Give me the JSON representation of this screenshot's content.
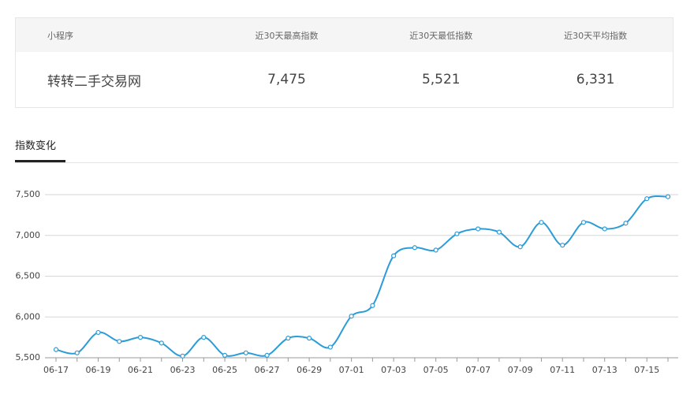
{
  "table": {
    "header": [
      "小程序",
      "近30天最高指数",
      "近30天最低指数",
      "近30天平均指数"
    ],
    "rows": [
      [
        "转转二手交易网",
        "7,475",
        "5,521",
        "6,331"
      ]
    ]
  },
  "tab": "指数变化",
  "chart_data": {
    "type": "line",
    "categories": [
      "06-17",
      null,
      "06-19",
      null,
      "06-21",
      null,
      "06-23",
      null,
      "06-25",
      null,
      "06-27",
      null,
      "06-29",
      null,
      "07-01",
      null,
      "07-03",
      null,
      "07-05",
      null,
      "07-07",
      null,
      "07-09",
      null,
      "07-11",
      null,
      "07-13",
      null,
      "07-15",
      null
    ],
    "values": [
      5600,
      5560,
      5810,
      5700,
      5750,
      5680,
      5521,
      5750,
      5530,
      5560,
      5530,
      5740,
      5740,
      5630,
      6010,
      6140,
      6750,
      6850,
      6820,
      7020,
      7080,
      7040,
      6860,
      7160,
      6880,
      7160,
      7080,
      7150,
      7450,
      7475
    ],
    "color": "#2b9cd8",
    "ylim": [
      5500,
      7900
    ],
    "yticks": [
      {
        "value": 5500,
        "label": "5,500"
      },
      {
        "value": 6000,
        "label": "6,000"
      },
      {
        "value": 6500,
        "label": "6,500"
      },
      {
        "value": 7000,
        "label": "7,000"
      },
      {
        "value": 7500,
        "label": "7,500"
      }
    ],
    "grid": true
  }
}
